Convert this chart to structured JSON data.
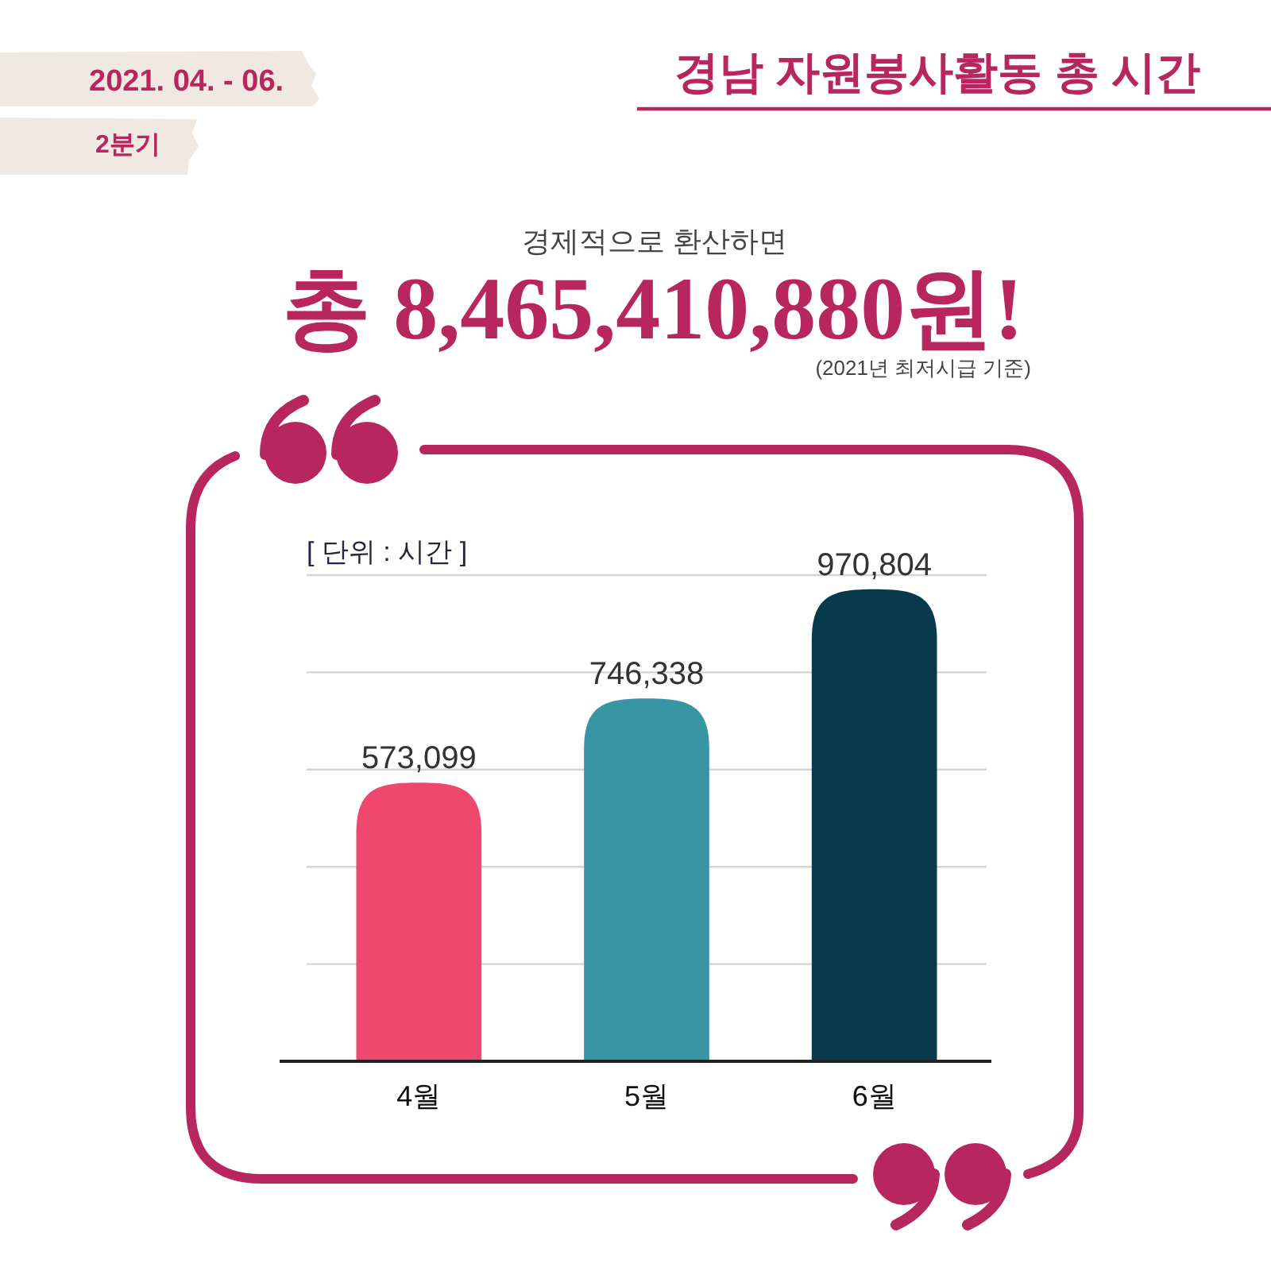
{
  "chart_data": {
    "type": "bar",
    "title": "경남 자원봉사활동 총 시간",
    "subtitle": "2021. 04. - 06.",
    "ylabel": "[ 단위 : 시간 ]",
    "annotations": [
      "2분기",
      "경제적으로 환산하면",
      "총 8,465,410,880원!",
      "(2021년 최저시급 기준)"
    ],
    "categories": [
      "4월",
      "5월",
      "6월"
    ],
    "values": [
      573099,
      746338,
      970804
    ],
    "colors": [
      "#ef4870",
      "#3795a4",
      "#093a4b"
    ],
    "value_labels": [
      "573,099",
      "746,338",
      "970,804"
    ],
    "ylim": [
      0,
      1000000
    ],
    "yticks": [
      {
        "value": 0,
        "label": null
      },
      {
        "value": 200000,
        "label": null
      },
      {
        "value": 400000,
        "label": null
      },
      {
        "value": 600000,
        "label": null
      },
      {
        "value": 800000,
        "label": null
      },
      {
        "value": 1000000,
        "label": null
      }
    ],
    "grid": "y",
    "tick_labels": "x"
  }
}
